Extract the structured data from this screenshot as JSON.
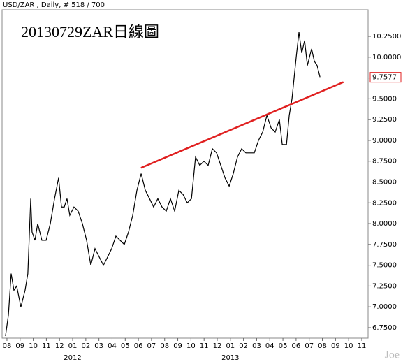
{
  "chart_data": {
    "type": "line",
    "header": "USD/ZAR , Daily, # 518 / 700",
    "title": "20130729ZAR日線圖",
    "watermark": "Joe",
    "xlim": [
      -0.37,
      27.48
    ],
    "ylim": [
      6.624,
      10.569
    ],
    "xticks": [
      {
        "value": 0,
        "label": "08"
      },
      {
        "value": 1,
        "label": "09"
      },
      {
        "value": 2,
        "label": "10"
      },
      {
        "value": 3,
        "label": "11"
      },
      {
        "value": 4,
        "label": "12"
      },
      {
        "value": 5,
        "label": "01"
      },
      {
        "value": 6,
        "label": "02"
      },
      {
        "value": 7,
        "label": "03"
      },
      {
        "value": 8,
        "label": "04"
      },
      {
        "value": 9,
        "label": "05"
      },
      {
        "value": 10,
        "label": "06"
      },
      {
        "value": 11,
        "label": "07"
      },
      {
        "value": 12,
        "label": "08"
      },
      {
        "value": 13,
        "label": "09"
      },
      {
        "value": 14,
        "label": "10"
      },
      {
        "value": 15,
        "label": "11"
      },
      {
        "value": 16,
        "label": "12"
      },
      {
        "value": 17,
        "label": "01"
      },
      {
        "value": 18,
        "label": "02"
      },
      {
        "value": 19,
        "label": "03"
      },
      {
        "value": 20,
        "label": "04"
      },
      {
        "value": 21,
        "label": "05"
      },
      {
        "value": 22,
        "label": "06"
      },
      {
        "value": 23,
        "label": "07"
      },
      {
        "value": 24,
        "label": "08"
      },
      {
        "value": 25,
        "label": "09"
      },
      {
        "value": 26,
        "label": "10"
      },
      {
        "value": 27,
        "label": "11"
      }
    ],
    "year_ticks": [
      {
        "value": 5,
        "label": "2012"
      },
      {
        "value": 17,
        "label": "2013"
      }
    ],
    "yticks": [
      {
        "value": 6.75,
        "label": "6.7500"
      },
      {
        "value": 7,
        "label": "7.0000"
      },
      {
        "value": 7.25,
        "label": "7.2500"
      },
      {
        "value": 7.5,
        "label": "7.5000"
      },
      {
        "value": 7.75,
        "label": "7.7500"
      },
      {
        "value": 8,
        "label": "8.0000"
      },
      {
        "value": 8.25,
        "label": "8.2500"
      },
      {
        "value": 8.5,
        "label": "8.5000"
      },
      {
        "value": 8.75,
        "label": "8.7500"
      },
      {
        "value": 9,
        "label": "9.0000"
      },
      {
        "value": 9.25,
        "label": "9.2500"
      },
      {
        "value": 9.5,
        "label": "9.5000"
      },
      {
        "value": 9.75,
        "label": "9.7500"
      },
      {
        "value": 10,
        "label": "10.0000"
      },
      {
        "value": 10.25,
        "label": "10.2500"
      }
    ],
    "series": [
      {
        "name": "USD/ZAR",
        "color": "#000000",
        "x": [
          -0.11,
          0.11,
          0.32,
          0.53,
          0.74,
          1.06,
          1.38,
          1.59,
          1.81,
          1.91,
          2.13,
          2.34,
          2.66,
          2.98,
          3.3,
          3.62,
          3.93,
          4.15,
          4.36,
          4.57,
          4.78,
          5.1,
          5.42,
          5.74,
          6.06,
          6.38,
          6.7,
          7.02,
          7.34,
          7.66,
          7.97,
          8.29,
          8.61,
          8.93,
          9.25,
          9.57,
          9.89,
          10.21,
          10.53,
          10.85,
          11.16,
          11.48,
          11.8,
          12.12,
          12.44,
          12.76,
          13.08,
          13.4,
          13.72,
          14.04,
          14.35,
          14.67,
          14.99,
          15.31,
          15.63,
          15.95,
          16.27,
          16.59,
          16.91,
          17.22,
          17.54,
          17.86,
          18.18,
          18.5,
          18.82,
          19.14,
          19.46,
          19.78,
          20.1,
          20.41,
          20.73,
          20.95,
          21.27,
          21.48,
          21.69,
          22.01,
          22.22,
          22.43,
          22.65,
          22.86,
          23.18,
          23.39,
          23.6,
          23.82
        ],
        "values": [
          6.65,
          6.9,
          7.4,
          7.2,
          7.25,
          7.0,
          7.2,
          7.4,
          8.3,
          7.9,
          7.8,
          8.0,
          7.8,
          7.8,
          8.0,
          8.3,
          8.55,
          8.2,
          8.2,
          8.3,
          8.1,
          8.2,
          8.15,
          8.0,
          7.8,
          7.5,
          7.7,
          7.6,
          7.5,
          7.6,
          7.7,
          7.85,
          7.8,
          7.75,
          7.9,
          8.1,
          8.4,
          8.6,
          8.4,
          8.3,
          8.2,
          8.3,
          8.2,
          8.15,
          8.3,
          8.15,
          8.4,
          8.35,
          8.25,
          8.3,
          8.8,
          8.7,
          8.75,
          8.7,
          8.9,
          8.85,
          8.7,
          8.55,
          8.45,
          8.6,
          8.8,
          8.9,
          8.85,
          8.85,
          8.85,
          9.0,
          9.1,
          9.3,
          9.15,
          9.1,
          9.25,
          8.95,
          8.95,
          9.3,
          9.5,
          10.0,
          10.3,
          10.05,
          10.2,
          9.9,
          10.1,
          9.95,
          9.9,
          9.76
        ]
      }
    ],
    "trendline": {
      "color": "#e02020",
      "x": [
        10.2,
        25.6
      ],
      "values": [
        8.67,
        9.7
      ]
    },
    "last_price": 9.7577,
    "last_price_color": "#e02020"
  }
}
